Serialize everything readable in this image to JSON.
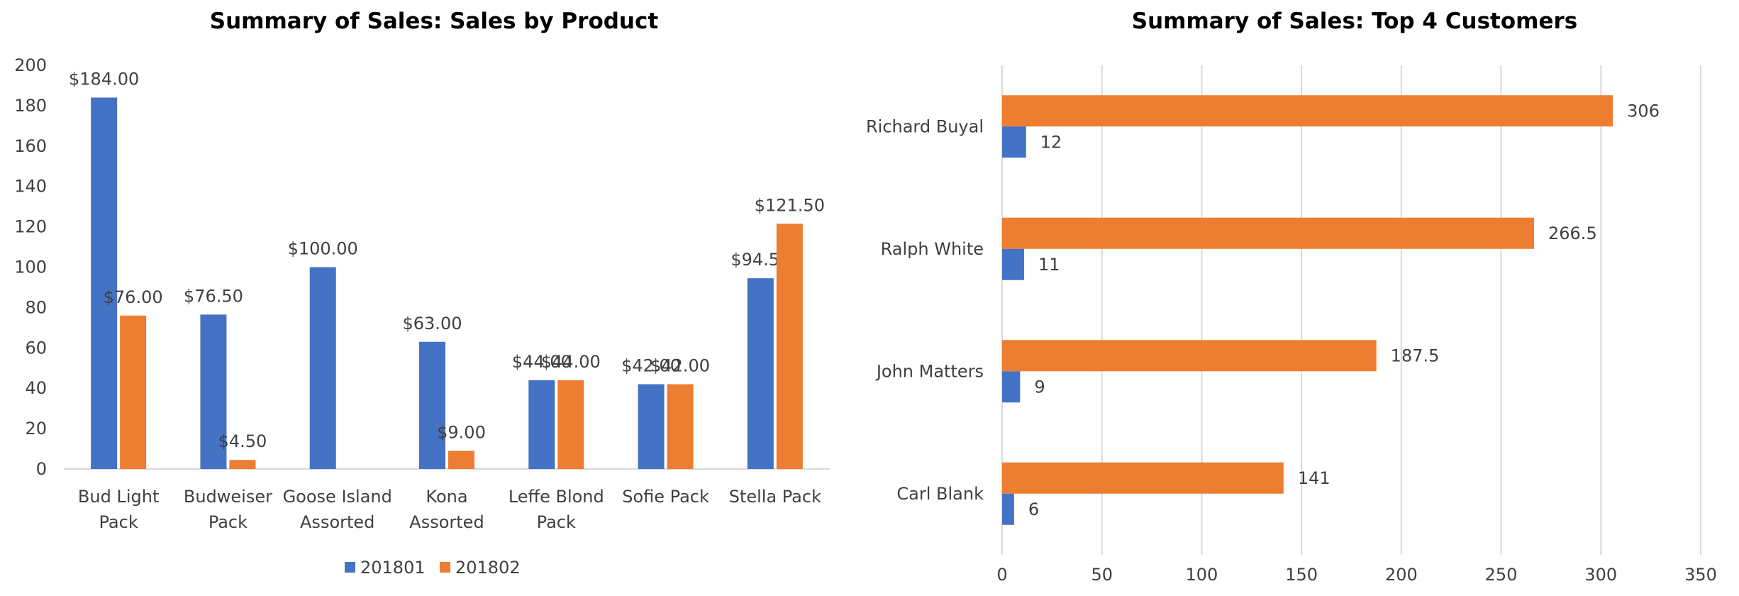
{
  "chart_data": [
    {
      "type": "bar",
      "title": "Summary of Sales: Sales by Product",
      "categories": [
        [
          "Bud Light",
          "Pack"
        ],
        [
          "Budweiser",
          "Pack"
        ],
        [
          "Goose Island",
          "Assorted"
        ],
        [
          "Kona",
          "Assorted"
        ],
        [
          "Leffe Blond",
          "Pack"
        ],
        [
          "Sofie Pack"
        ],
        [
          "Stella Pack"
        ]
      ],
      "series": [
        {
          "name": "201801",
          "color": "#4472C4",
          "values": [
            184,
            76.5,
            100,
            63,
            44,
            42,
            94.5
          ],
          "labels": [
            "$184.00",
            "$76.50",
            "$100.00",
            "$63.00",
            "$44.00",
            "$42.00",
            "$94.50"
          ]
        },
        {
          "name": "201802",
          "color": "#ED7D31",
          "values": [
            76,
            4.5,
            null,
            9,
            44,
            42,
            121.5
          ],
          "labels": [
            "$76.00",
            "$4.50",
            "",
            "$9.00",
            "$44.00",
            "$42.00",
            "$121.50"
          ]
        }
      ],
      "ylim": [
        0,
        200
      ],
      "yticks": [
        0,
        20,
        40,
        60,
        80,
        100,
        120,
        140,
        160,
        180,
        200
      ],
      "grid": false,
      "legend": "bottom"
    },
    {
      "type": "bar",
      "orientation": "horizontal",
      "title": "Summary of Sales: Top 4 Customers",
      "categories": [
        "Richard Buyal",
        "Ralph White",
        "John Matters",
        "Carl Blank"
      ],
      "series": [
        {
          "name": "201801",
          "color": "#4472C4",
          "values": [
            12,
            11,
            9,
            6
          ],
          "labels": [
            "12",
            "11",
            "9",
            "6"
          ]
        },
        {
          "name": "201802",
          "color": "#ED7D31",
          "values": [
            306,
            266.5,
            187.5,
            141
          ],
          "labels": [
            "306",
            "266.5",
            "187.5",
            "141"
          ]
        }
      ],
      "xlim": [
        0,
        350
      ],
      "xticks": [
        0,
        50,
        100,
        150,
        200,
        250,
        300,
        350
      ],
      "grid": true,
      "legend": "none"
    }
  ]
}
